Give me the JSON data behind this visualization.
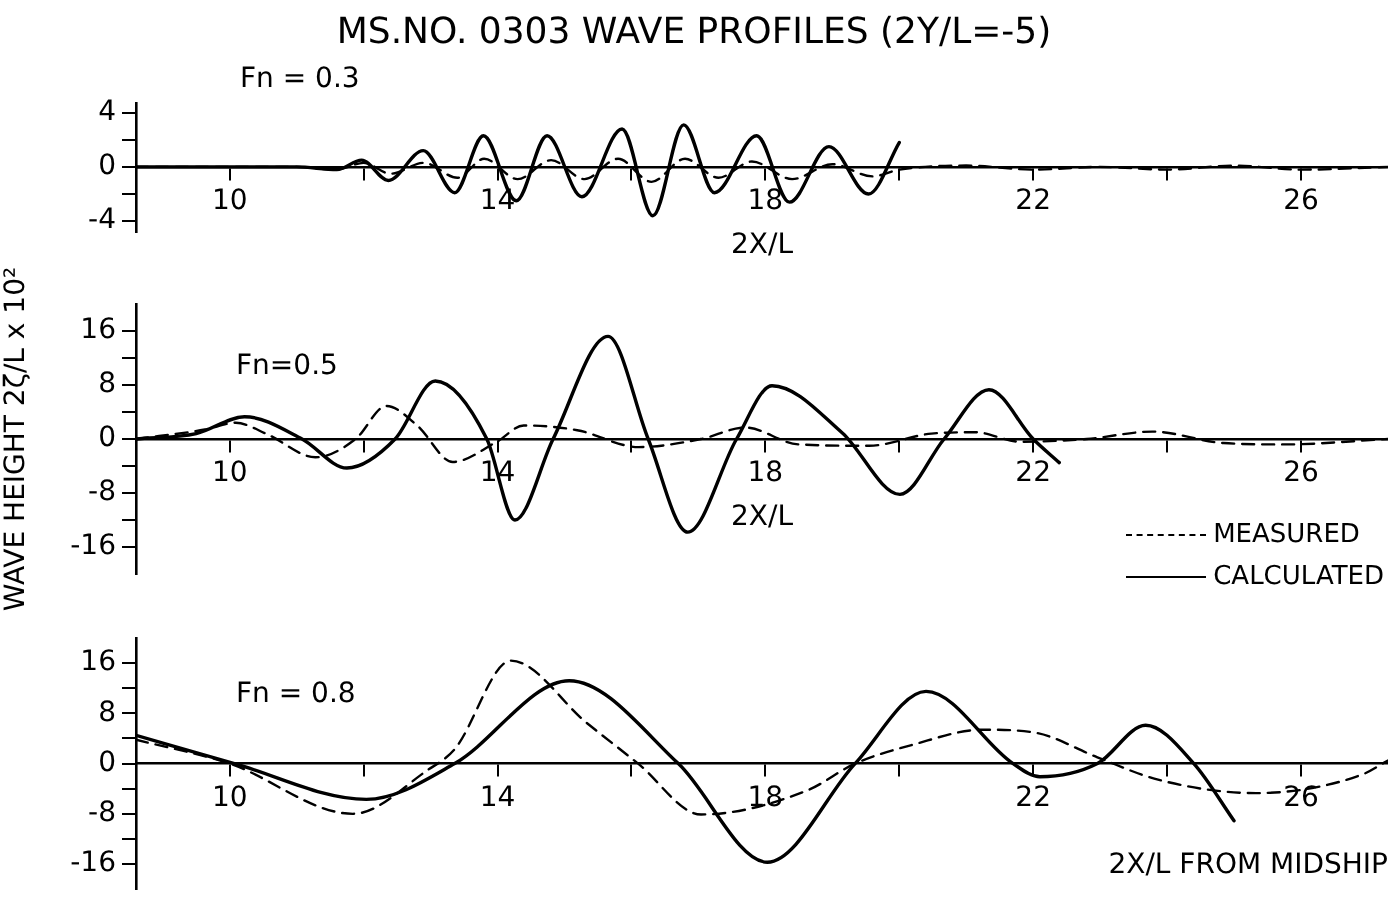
{
  "chart_data": [
    {
      "type": "line",
      "title": "MS.NO. 0303 WAVE PROFILES (2Y/L=-5)",
      "xlabel": "2X/L",
      "annotations": [
        "Fn = 0.3"
      ],
      "xlim": [
        8.6,
        27.3
      ],
      "xticks": [
        10,
        {
          "value": 12,
          "label": null
        },
        14,
        {
          "value": 16,
          "label": null
        },
        18,
        {
          "value": 20,
          "label": null
        },
        22,
        {
          "value": 24,
          "label": null
        },
        26
      ],
      "ylim": [
        -4.8,
        4.7
      ],
      "yticks": [
        -4,
        {
          "value": -2,
          "label": null
        },
        0,
        {
          "value": 2,
          "label": null
        },
        4
      ],
      "series": [
        {
          "color": "#000000",
          "line_style": "dashed",
          "x": [
            8.6,
            11,
            11.6,
            12,
            12.4,
            12.9,
            13.4,
            13.8,
            14.3,
            14.8,
            15.3,
            15.8,
            16.3,
            16.8,
            17.3,
            17.8,
            18.4,
            19,
            19.6,
            20,
            21,
            22,
            23,
            24,
            25,
            26,
            27.3
          ],
          "values": [
            0,
            0,
            -0.2,
            0.3,
            -0.5,
            0.3,
            -0.8,
            0.6,
            -0.9,
            0.5,
            -0.9,
            0.6,
            -1.1,
            0.6,
            -0.8,
            0.4,
            -0.9,
            0.2,
            -0.7,
            -0.2,
            0.1,
            -0.2,
            0,
            -0.2,
            0.1,
            -0.2,
            0
          ]
        },
        {
          "color": "#000000",
          "line_style": "solid",
          "x": [
            8.6,
            11,
            11.6,
            11.97,
            12.37,
            12.89,
            13.36,
            13.79,
            14.28,
            14.74,
            15.26,
            15.86,
            16.32,
            16.78,
            17.24,
            17.87,
            18.36,
            18.95,
            19.54,
            20.0
          ],
          "values": [
            0,
            0,
            -0.2,
            0.5,
            -1.0,
            1.2,
            -1.9,
            2.3,
            -2.5,
            2.3,
            -2.2,
            2.8,
            -3.6,
            3.1,
            -1.9,
            2.3,
            -2.6,
            1.5,
            -2.0,
            1.8
          ]
        }
      ]
    },
    {
      "type": "line",
      "xlabel": "2X/L",
      "ylabel": "WAVE HEIGHT 2ζ/L x 10²",
      "annotations": [
        "Fn=0.5"
      ],
      "legend": "bottom right",
      "xlim": [
        8.6,
        27.3
      ],
      "xticks": [
        10,
        {
          "value": 12,
          "label": null
        },
        14,
        {
          "value": 16,
          "label": null
        },
        18,
        {
          "value": 20,
          "label": null
        },
        22,
        {
          "value": 24,
          "label": null
        },
        26
      ],
      "ylim": [
        -20,
        20
      ],
      "yticks": [
        -16,
        {
          "value": -12,
          "label": null
        },
        -8,
        {
          "value": -4,
          "label": null
        },
        0,
        {
          "value": 4,
          "label": null
        },
        8,
        {
          "value": 12,
          "label": null
        },
        16
      ],
      "series": [
        {
          "name": "MEASURED",
          "color": "#000000",
          "line_style": "dashed",
          "x": [
            8.6,
            9.63,
            10.09,
            10.56,
            11.28,
            11.88,
            12.34,
            12.8,
            13.33,
            13.99,
            14.39,
            15.19,
            16.11,
            17.04,
            17.7,
            18.49,
            19.55,
            20.48,
            21.14,
            21.8,
            22.8,
            23.78,
            24.84,
            25.77,
            27.3
          ],
          "values": [
            0,
            1.4,
            2.4,
            0.7,
            -2.7,
            0,
            4.9,
            2,
            -3.4,
            -0.4,
            2,
            1.3,
            -1.2,
            0,
            1.7,
            -0.8,
            -1,
            0.8,
            1,
            -0.4,
            0,
            1.1,
            -0.6,
            -0.8,
            0
          ]
        },
        {
          "name": "CALCULATED",
          "color": "#000000",
          "line_style": "solid",
          "x": [
            8.6,
            9.5,
            10.22,
            11.08,
            11.75,
            12.47,
            13.07,
            13.84,
            14.26,
            14.83,
            15.65,
            16.25,
            16.84,
            17.57,
            18.1,
            19.15,
            20.01,
            20.67,
            21.34,
            22.0,
            22.39
          ],
          "values": [
            0,
            0.8,
            3.3,
            0,
            -4.3,
            0,
            8.6,
            0,
            -12,
            0,
            15.2,
            0,
            -13.8,
            0,
            7.9,
            0.9,
            -8.2,
            0,
            7.3,
            0,
            -3.5
          ]
        }
      ]
    },
    {
      "type": "line",
      "xlabel": "2X/L FROM MIDSHIP",
      "annotations": [
        "Fn = 0.8"
      ],
      "xlim": [
        8.6,
        27.3
      ],
      "xticks": [
        10,
        {
          "value": 12,
          "label": null
        },
        14,
        {
          "value": 16,
          "label": null
        },
        18,
        {
          "value": 20,
          "label": null
        },
        22,
        {
          "value": 24,
          "label": null
        },
        26
      ],
      "ylim": [
        -20,
        20
      ],
      "yticks": [
        -16,
        {
          "value": -12,
          "label": null
        },
        -8,
        {
          "value": -4,
          "label": null
        },
        0,
        {
          "value": 4,
          "label": null
        },
        8,
        {
          "value": 12,
          "label": null
        },
        16
      ],
      "series": [
        {
          "color": "#000000",
          "line_style": "dashed",
          "x": [
            8.6,
            10,
            11.84,
            12.96,
            13.36,
            14.2,
            15.33,
            16.1,
            17.04,
            18.62,
            19.34,
            20.2,
            21.25,
            22.04,
            22.96,
            23.88,
            25.33,
            26.9,
            27.3
          ],
          "values": [
            3.8,
            0,
            -8,
            -1,
            2.3,
            16.4,
            6.5,
            0,
            -8.1,
            -4.3,
            0,
            3,
            5.4,
            4.9,
            1,
            -2.6,
            -4.7,
            -1.8,
            0.5
          ]
        },
        {
          "color": "#000000",
          "line_style": "solid",
          "x": [
            8.6,
            10.07,
            12.04,
            13.36,
            15.07,
            16.7,
            18.03,
            19.34,
            20.4,
            21.7,
            22.1,
            22.96,
            23.68,
            24.4,
            25.0
          ],
          "values": [
            4.5,
            0,
            -5.7,
            0,
            13.2,
            0,
            -15.7,
            0,
            11.5,
            0,
            -2.1,
            0,
            6.1,
            0,
            -9.1
          ]
        }
      ]
    }
  ]
}
